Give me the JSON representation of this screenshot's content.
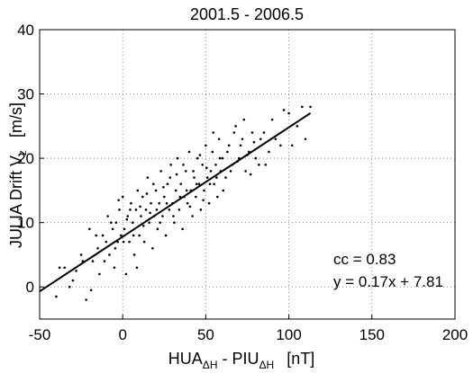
{
  "chart_data": {
    "type": "scatter",
    "title": "2001.5 - 2006.5",
    "x_label": "HUA",
    "x_label_sub1": "ΔH",
    "x_label_mid": " - PIU",
    "x_label_sub2": "ΔH",
    "x_label_unit": "[nT]",
    "y_label": "JULIA Drift V",
    "y_label_sub": "z",
    "y_label_unit": "[m/s]",
    "annotations": [
      "cc = 0.83",
      "y = 0.17x + 7.81"
    ],
    "fit": {
      "slope": 0.17,
      "intercept": 7.81,
      "x_range": [
        -50,
        113
      ]
    },
    "color": "#000000",
    "grid": true,
    "xlim": [
      -50,
      200
    ],
    "xticks": [
      -50,
      0,
      50,
      100,
      150,
      200
    ],
    "ylim": [
      -5,
      40
    ],
    "yticks": [
      0,
      10,
      20,
      30,
      40
    ],
    "x": [
      -40,
      -35,
      -30,
      -28,
      -25,
      -22,
      -20,
      -18,
      -15,
      -14,
      -12,
      -10,
      -9,
      -8,
      -6,
      -5,
      -4,
      -3,
      -2,
      -1,
      0,
      1,
      2,
      3,
      4,
      5,
      6,
      7,
      8,
      9,
      10,
      11,
      12,
      13,
      14,
      15,
      16,
      17,
      18,
      19,
      20,
      21,
      22,
      23,
      24,
      25,
      26,
      27,
      28,
      29,
      30,
      31,
      32,
      33,
      34,
      35,
      36,
      37,
      38,
      39,
      40,
      41,
      42,
      43,
      44,
      45,
      46,
      47,
      48,
      49,
      50,
      51,
      52,
      53,
      54,
      55,
      56,
      57,
      58,
      59,
      60,
      62,
      64,
      66,
      68,
      70,
      72,
      74,
      76,
      78,
      80,
      83,
      86,
      90,
      95,
      100,
      105,
      110,
      113,
      -38,
      -32,
      -24,
      -19,
      -16,
      -11,
      -7,
      -4.5,
      -2.5,
      0.5,
      2.5,
      4.5,
      6.5,
      8.5,
      10.5,
      12.5,
      14.5,
      16.5,
      18.5,
      20.5,
      22.5,
      24.5,
      26.5,
      28.5,
      30.5,
      32.5,
      34.5,
      36.5,
      38.5,
      40.5,
      42.5,
      44.5,
      46.5,
      48.5,
      50.5,
      52.5,
      54.5,
      56.5,
      58.5,
      60.5,
      63,
      65,
      67,
      69,
      71,
      73,
      75,
      77,
      79,
      82,
      85,
      88,
      92,
      97,
      102,
      108
    ],
    "values": [
      -1.5,
      3,
      1,
      2.5,
      5,
      -2,
      9,
      4,
      6,
      2,
      8,
      7,
      11,
      5,
      9,
      3,
      10,
      7,
      12,
      8,
      14,
      9,
      2,
      11,
      7,
      13,
      10,
      5,
      12,
      15,
      8,
      11,
      14,
      7,
      12,
      17,
      10,
      13,
      6,
      11,
      15,
      9,
      13,
      18,
      11,
      14,
      8,
      16,
      12,
      19,
      13,
      10,
      15,
      20,
      12,
      16,
      9,
      14,
      18,
      13,
      21,
      15,
      11,
      17,
      14,
      20,
      16,
      12,
      19,
      15,
      22,
      17,
      13,
      18,
      21,
      16,
      19,
      14,
      23,
      18,
      20,
      17,
      22,
      19,
      25,
      20,
      23,
      18,
      21,
      24,
      20,
      23,
      19,
      26,
      22,
      27,
      25,
      23,
      28,
      3,
      0,
      4,
      -0.5,
      8,
      4,
      10,
      6,
      13.5,
      7,
      10.5,
      12,
      8,
      3,
      12.5,
      9.5,
      14.5,
      11.5,
      16,
      12,
      10,
      15.5,
      13,
      17,
      11,
      17.5,
      14,
      19,
      15,
      12.5,
      18,
      16,
      20.5,
      13.5,
      18.5,
      16,
      24,
      17,
      20,
      15,
      21,
      18,
      24,
      19.5,
      22,
      26,
      20.5,
      17.5,
      22.5,
      19,
      24,
      21,
      23,
      27.5,
      22,
      28
    ]
  }
}
